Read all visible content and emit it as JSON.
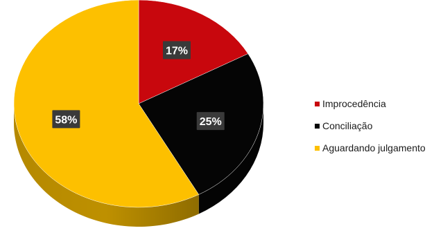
{
  "chart_data": {
    "type": "pie",
    "style": "3d",
    "title": "",
    "slices": [
      {
        "label": "Improcedência",
        "value": 17,
        "display": "17%",
        "color": "#c8070d"
      },
      {
        "label": "Conciliação",
        "value": 25,
        "display": "25%",
        "color": "#050505"
      },
      {
        "label": "Aguardando julgamento",
        "value": 58,
        "display": "58%",
        "color": "#fdc000"
      }
    ],
    "legend_position": "right",
    "data_label_style": "dark boxes with white bold text"
  }
}
